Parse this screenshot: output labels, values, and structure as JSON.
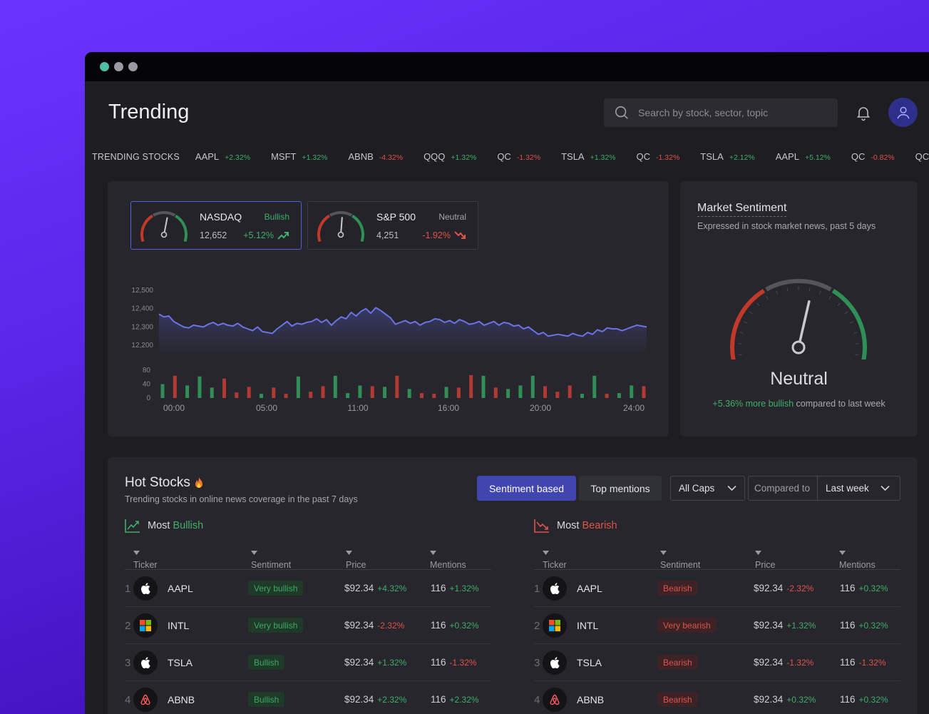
{
  "page_title": "Trending",
  "search": {
    "placeholder": "Search by stock, sector, topic"
  },
  "ticker_strip": {
    "label": "TRENDING STOCKS",
    "items": [
      {
        "sym": "AAPL",
        "chg": "+2.32%",
        "dir": "pos"
      },
      {
        "sym": "MSFT",
        "chg": "+1.32%",
        "dir": "pos"
      },
      {
        "sym": "ABNB",
        "chg": "-4.32%",
        "dir": "neg"
      },
      {
        "sym": "QQQ",
        "chg": "+1.32%",
        "dir": "pos"
      },
      {
        "sym": "QC",
        "chg": "-1.32%",
        "dir": "neg"
      },
      {
        "sym": "TSLA",
        "chg": "+1.32%",
        "dir": "pos"
      },
      {
        "sym": "QC",
        "chg": "-1.32%",
        "dir": "neg"
      },
      {
        "sym": "TSLA",
        "chg": "+2.12%",
        "dir": "pos"
      },
      {
        "sym": "AAPL",
        "chg": "+5.12%",
        "dir": "pos"
      },
      {
        "sym": "QC",
        "chg": "-0.82%",
        "dir": "neg"
      },
      {
        "sym": "QC",
        "chg": "",
        "dir": "neg"
      }
    ]
  },
  "indices": [
    {
      "name": "NASDAQ",
      "tag": "Bullish",
      "value": "12,652",
      "change": "+5.12%",
      "dir": "pos",
      "needle_fraction": 0.55
    },
    {
      "name": "S&P 500",
      "tag": "Neutral",
      "value": "4,251",
      "change": "-1.92%",
      "dir": "neg",
      "needle_fraction": 0.52
    }
  ],
  "chart_data": {
    "type": "line",
    "x_ticks": [
      "00:00",
      "05:00",
      "11:00",
      "16:00",
      "20:00",
      "24:00"
    ],
    "y_ticks": [
      "12,500",
      "12,400",
      "12,300",
      "12,200"
    ],
    "ylim": [
      12150,
      12500
    ],
    "price_series": [
      12370,
      12355,
      12360,
      12330,
      12315,
      12300,
      12295,
      12310,
      12305,
      12300,
      12315,
      12325,
      12310,
      12320,
      12310,
      12305,
      12320,
      12300,
      12290,
      12280,
      12300,
      12275,
      12270,
      12265,
      12290,
      12310,
      12330,
      12305,
      12320,
      12315,
      12325,
      12330,
      12345,
      12325,
      12340,
      12310,
      12335,
      12355,
      12345,
      12380,
      12360,
      12385,
      12400,
      12375,
      12405,
      12390,
      12370,
      12350,
      12315,
      12325,
      12335,
      12320,
      12330,
      12310,
      12325,
      12330,
      12345,
      12340,
      12325,
      12335,
      12320,
      12340,
      12330,
      12315,
      12320,
      12330,
      12310,
      12320,
      12330,
      12310,
      12325,
      12320,
      12305,
      12310,
      12290,
      12300,
      12280,
      12260,
      12270,
      12250,
      12255,
      12260,
      12255,
      12250,
      12265,
      12255,
      12250,
      12270,
      12260,
      12285,
      12275,
      12295,
      12290,
      12290,
      12280,
      12290,
      12300,
      12310,
      12305,
      12300
    ],
    "volume_ylim": [
      0,
      80
    ],
    "volume_y_ticks": [
      "80",
      "40",
      "0"
    ],
    "volume": [
      {
        "v": 40,
        "dir": "pos"
      },
      {
        "v": 64,
        "dir": "neg"
      },
      {
        "v": 36,
        "dir": "pos"
      },
      {
        "v": 62,
        "dir": "pos"
      },
      {
        "v": 30,
        "dir": "pos"
      },
      {
        "v": 56,
        "dir": "neg"
      },
      {
        "v": 16,
        "dir": "neg"
      },
      {
        "v": 32,
        "dir": "neg"
      },
      {
        "v": 12,
        "dir": "pos"
      },
      {
        "v": 30,
        "dir": "neg"
      },
      {
        "v": 12,
        "dir": "neg"
      },
      {
        "v": 62,
        "dir": "pos"
      },
      {
        "v": 18,
        "dir": "neg"
      },
      {
        "v": 34,
        "dir": "neg"
      },
      {
        "v": 64,
        "dir": "pos"
      },
      {
        "v": 14,
        "dir": "pos"
      },
      {
        "v": 36,
        "dir": "pos"
      },
      {
        "v": 34,
        "dir": "neg"
      },
      {
        "v": 32,
        "dir": "pos"
      },
      {
        "v": 64,
        "dir": "neg"
      },
      {
        "v": 26,
        "dir": "pos"
      },
      {
        "v": 14,
        "dir": "neg"
      },
      {
        "v": 12,
        "dir": "neg"
      },
      {
        "v": 32,
        "dir": "pos"
      },
      {
        "v": 30,
        "dir": "neg"
      },
      {
        "v": 66,
        "dir": "neg"
      },
      {
        "v": 64,
        "dir": "pos"
      },
      {
        "v": 30,
        "dir": "neg"
      },
      {
        "v": 26,
        "dir": "pos"
      },
      {
        "v": 36,
        "dir": "pos"
      },
      {
        "v": 64,
        "dir": "pos"
      },
      {
        "v": 34,
        "dir": "neg"
      },
      {
        "v": 18,
        "dir": "neg"
      },
      {
        "v": 36,
        "dir": "neg"
      },
      {
        "v": 12,
        "dir": "pos"
      },
      {
        "v": 64,
        "dir": "pos"
      },
      {
        "v": 12,
        "dir": "neg"
      },
      {
        "v": 14,
        "dir": "pos"
      },
      {
        "v": 36,
        "dir": "pos"
      },
      {
        "v": 34,
        "dir": "neg"
      }
    ]
  },
  "sentiment": {
    "title": "Market Sentiment",
    "subtitle": "Expressed in stock market news, past 5 days",
    "state": "Neutral",
    "foot_highlight": "+5.36% more bullish",
    "foot_rest": "compared to last week",
    "needle_fraction": 0.56
  },
  "hot": {
    "title": "Hot Stocks",
    "subtitle": "Trending stocks in online news coverage in the past 7 days",
    "btn_sentiment": "Sentiment based",
    "btn_mentions": "Top mentions",
    "caps": "All Caps",
    "compared_label": "Compared to",
    "compared_value": "Last week",
    "columns": {
      "ticker": "Ticker",
      "sentiment": "Sentiment",
      "price": "Price",
      "mentions": "Mentions"
    },
    "bullish": {
      "label_a": "Most",
      "label_b": "Bullish",
      "rows": [
        {
          "rank": "1",
          "logo": "apple",
          "ticker": "AAPL",
          "sentiment": "Very bullish",
          "price": "$92.34",
          "price_chg": "+4.32%",
          "price_dir": "pos",
          "mentions": "116",
          "ment_chg": "+1.32%",
          "ment_dir": "pos"
        },
        {
          "rank": "2",
          "logo": "windows",
          "ticker": "INTL",
          "sentiment": "Very bullish",
          "price": "$92.34",
          "price_chg": "-2.32%",
          "price_dir": "neg",
          "mentions": "116",
          "ment_chg": "+0.32%",
          "ment_dir": "pos"
        },
        {
          "rank": "3",
          "logo": "apple",
          "ticker": "TSLA",
          "sentiment": "Bullish",
          "price": "$92.34",
          "price_chg": "+1.32%",
          "price_dir": "pos",
          "mentions": "116",
          "ment_chg": "-1.32%",
          "ment_dir": "neg"
        },
        {
          "rank": "4",
          "logo": "airbnb",
          "ticker": "ABNB",
          "sentiment": "Bullish",
          "price": "$92.34",
          "price_chg": "+2.32%",
          "price_dir": "pos",
          "mentions": "116",
          "ment_chg": "+2.32%",
          "ment_dir": "pos"
        }
      ]
    },
    "bearish": {
      "label_a": "Most",
      "label_b": "Bearish",
      "rows": [
        {
          "rank": "1",
          "logo": "apple",
          "ticker": "AAPL",
          "sentiment": "Bearish",
          "price": "$92.34",
          "price_chg": "-2.32%",
          "price_dir": "neg",
          "mentions": "116",
          "ment_chg": "+0.32%",
          "ment_dir": "pos"
        },
        {
          "rank": "2",
          "logo": "windows",
          "ticker": "INTL",
          "sentiment": "Very bearish",
          "price": "$92.34",
          "price_chg": "+1.32%",
          "price_dir": "pos",
          "mentions": "116",
          "ment_chg": "+0.32%",
          "ment_dir": "pos"
        },
        {
          "rank": "3",
          "logo": "apple",
          "ticker": "TSLA",
          "sentiment": "Bearish",
          "price": "$92.34",
          "price_chg": "-1.32%",
          "price_dir": "neg",
          "mentions": "116",
          "ment_chg": "-1.32%",
          "ment_dir": "neg"
        },
        {
          "rank": "4",
          "logo": "airbnb",
          "ticker": "ABNB",
          "sentiment": "Bearish",
          "price": "$92.34",
          "price_chg": "+0.32%",
          "price_dir": "pos",
          "mentions": "116",
          "ment_chg": "+0.32%",
          "ment_dir": "pos"
        }
      ]
    }
  },
  "colors": {
    "accent": "#4045b0",
    "positive": "#3fae6a",
    "negative": "#e0524a",
    "line": "#6b73e6"
  }
}
